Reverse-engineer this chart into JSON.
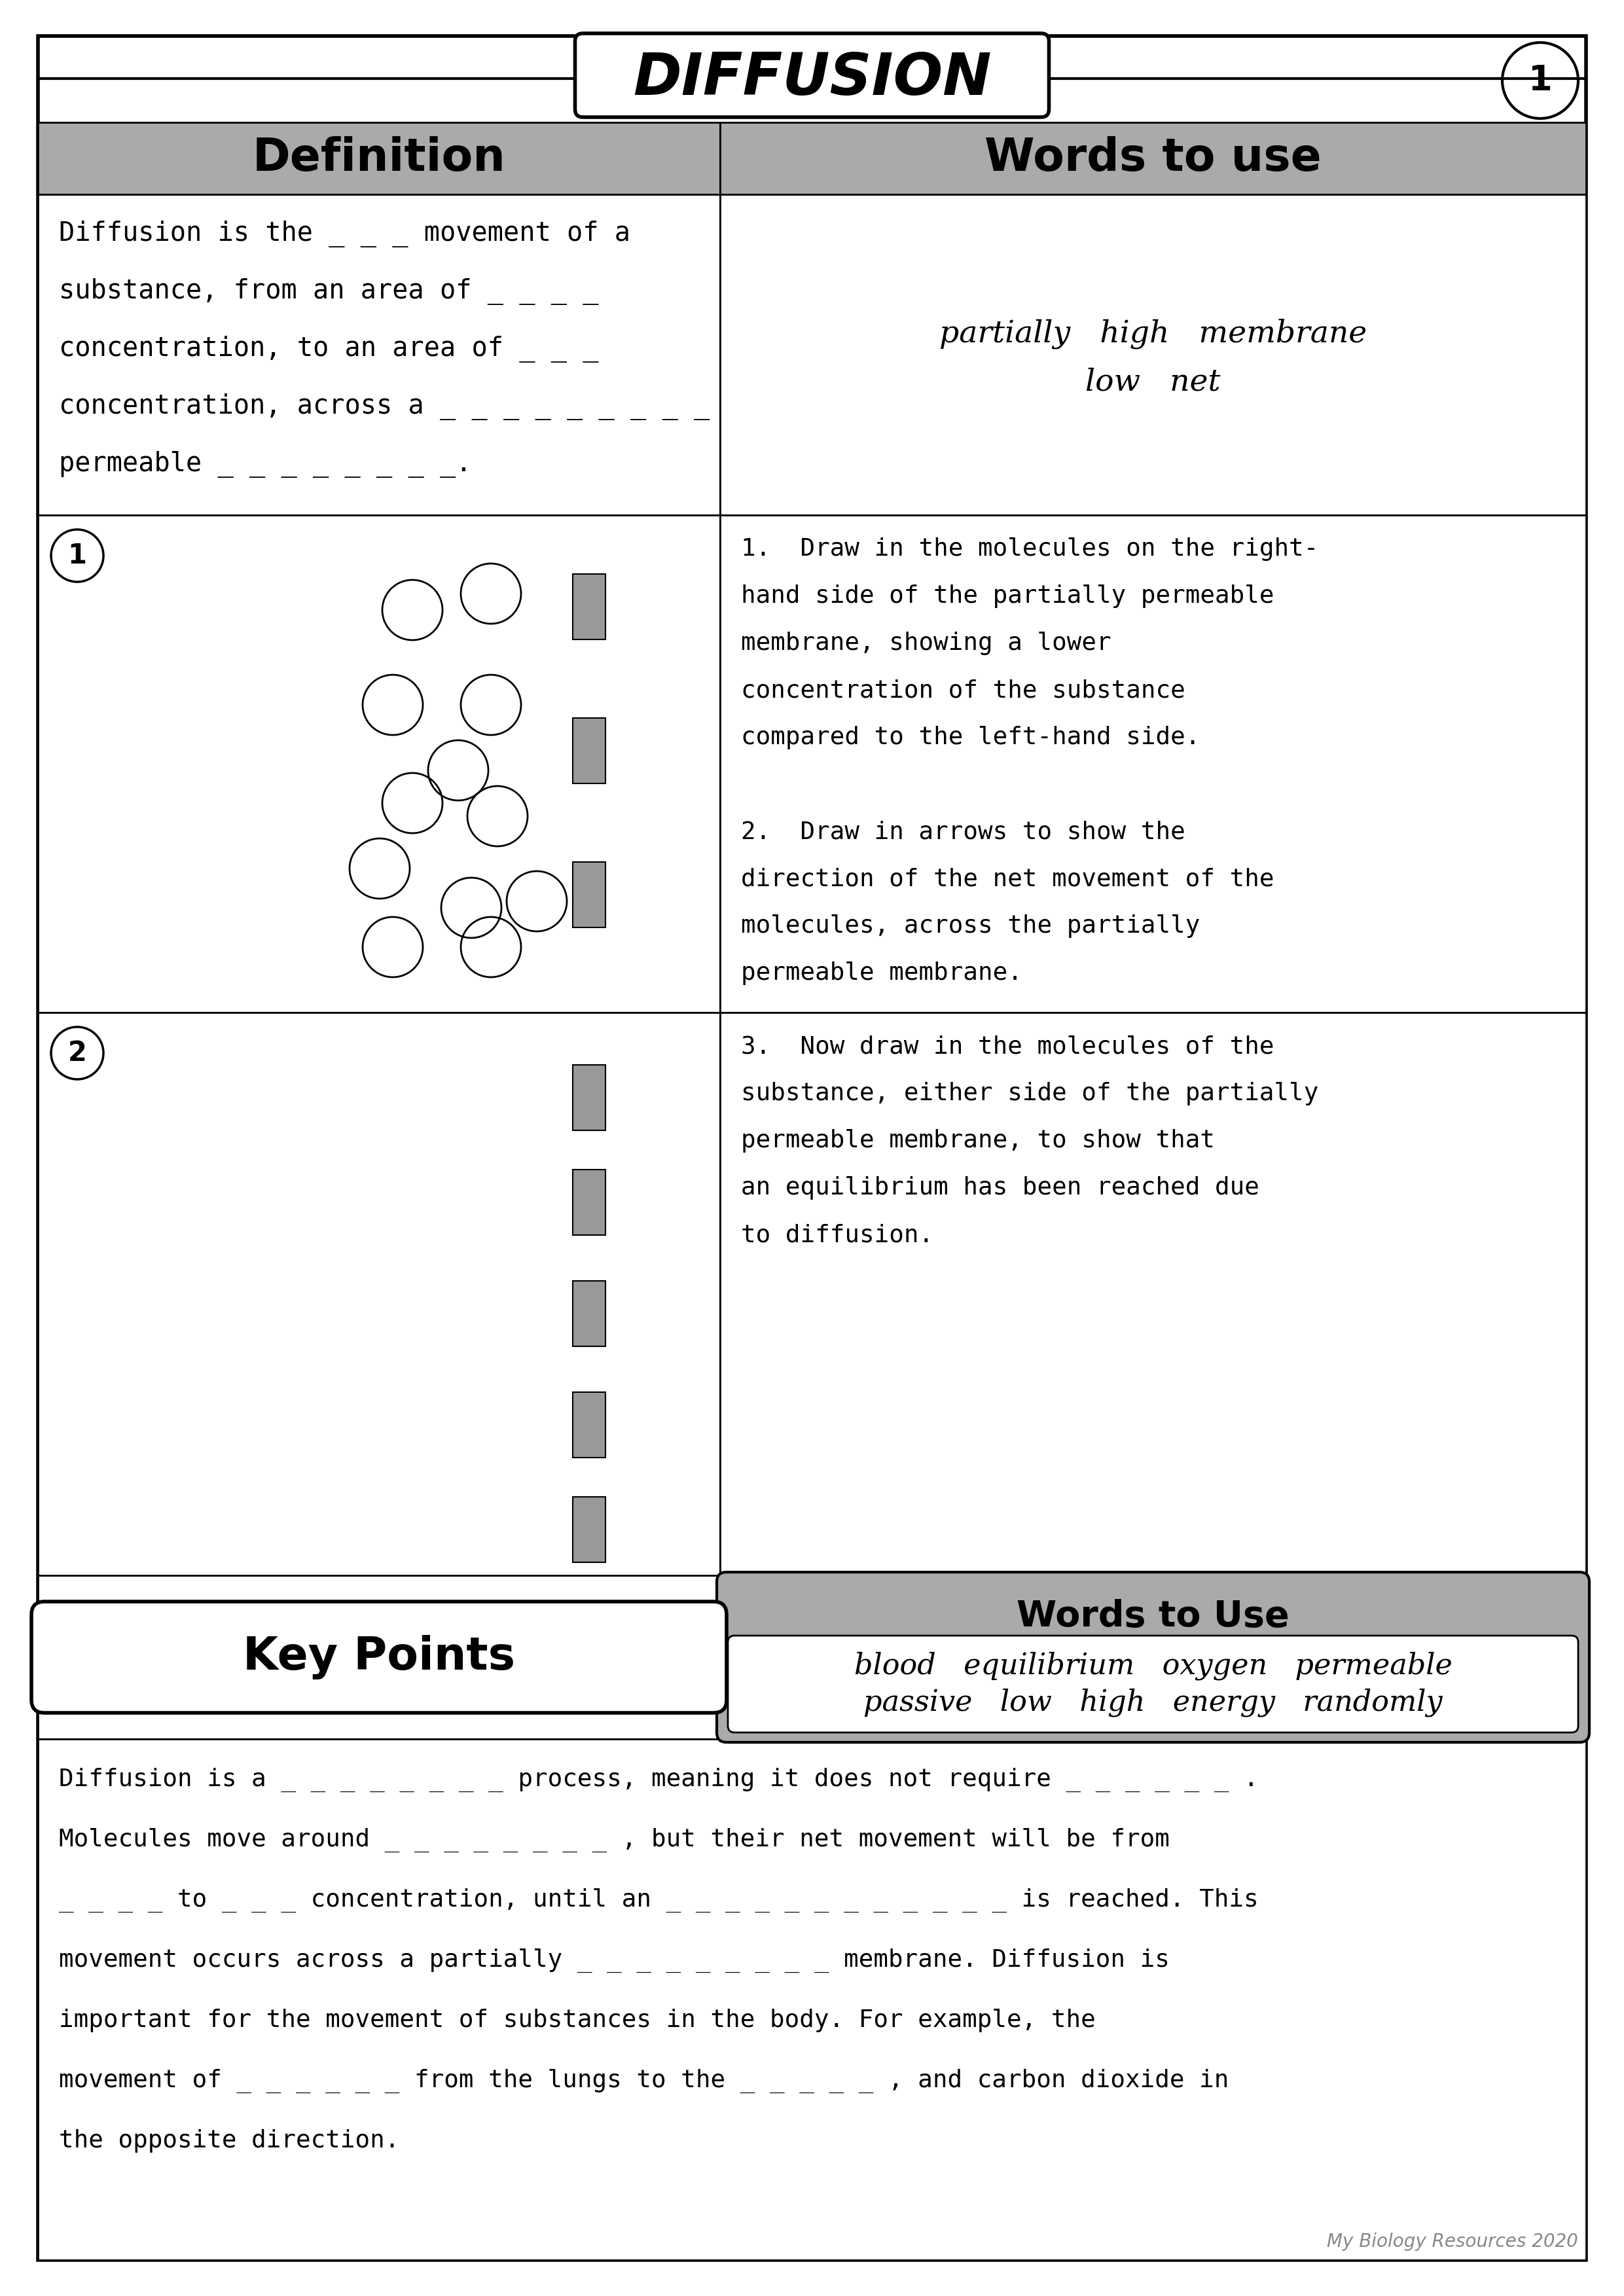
{
  "title": "DIFFUSION",
  "page_number": "1",
  "col1_header": "Definition",
  "col2_header": "Words to use",
  "def_lines": [
    "Diffusion is the _ _ _ movement of a",
    "substance, from an area of _ _ _ _",
    "concentration, to an area of _ _ _",
    "concentration, across a _ _ _ _ _ _ _ _ _",
    "permeable _ _ _ _ _ _ _ _."
  ],
  "words1_line1": "partially   high   membrane",
  "words1_line2": "low   net",
  "instr1_lines": [
    "1.  Draw in the molecules on the right-",
    "hand side of the partially permeable",
    "membrane, showing a lower",
    "concentration of the substance",
    "compared to the left-hand side.",
    "",
    "2.  Draw in arrows to show the",
    "direction of the net movement of the",
    "molecules, across the partially",
    "permeable membrane."
  ],
  "instr2_lines": [
    "3.  Now draw in the molecules of the",
    "substance, either side of the partially",
    "permeable membrane, to show that",
    "an equilibrium has been reached due",
    "to diffusion."
  ],
  "words_to_use_label": "Words to Use",
  "words2_line1": "blood   equilibrium   oxygen   permeable",
  "words2_line2": "passive   low   high   energy   randomly",
  "key_points_label": "Key Points",
  "kp_lines": [
    "Diffusion is a _ _ _ _ _ _ _ _ process, meaning it does not require _ _ _ _ _ _ .",
    "Molecules move around _ _ _ _ _ _ _ _ , but their net movement will be from",
    "_ _ _ _ to _ _ _ concentration, until an _ _ _ _ _ _ _ _ _ _ _ _ is reached. This",
    "movement occurs across a partially _ _ _ _ _ _ _ _ _ membrane. Diffusion is",
    "important for the movement of substances in the body. For example, the",
    "movement of _ _ _ _ _ _ from the lungs to the _ _ _ _ _ , and carbon dioxide in",
    "the opposite direction."
  ],
  "footer": "My Biology Resources 2020",
  "gray": "#aaaaaa",
  "memb_gray": "#999999"
}
